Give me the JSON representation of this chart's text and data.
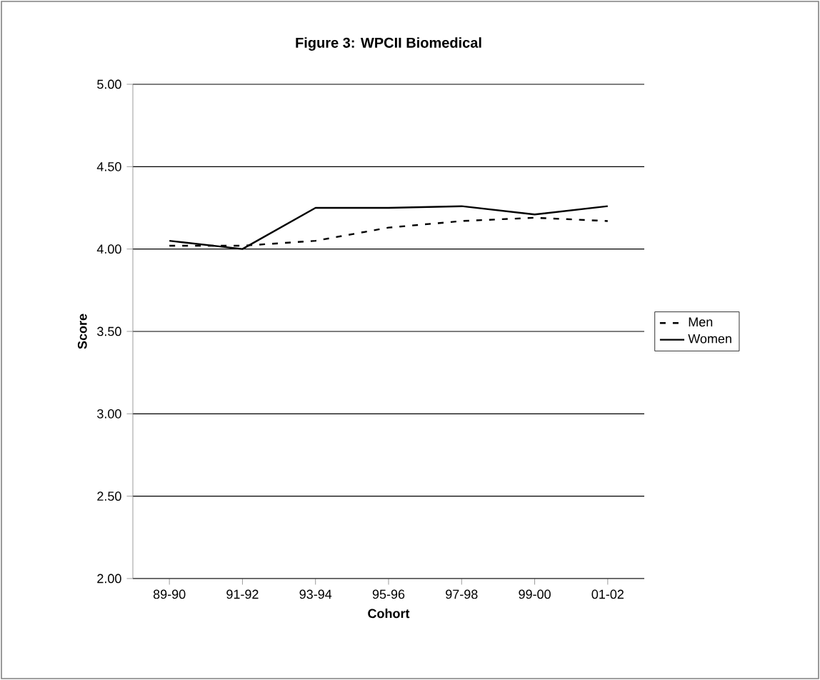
{
  "chart_data": {
    "type": "line",
    "title": "Figure 3:  WPCII Biomedical",
    "xlabel": "Cohort",
    "ylabel": "Score",
    "categories": [
      "89-90",
      "91-92",
      "93-94",
      "95-96",
      "97-98",
      "99-00",
      "01-02"
    ],
    "series": [
      {
        "name": "Men",
        "color": "#000000",
        "line_style": "dashed",
        "values": [
          4.02,
          4.02,
          4.05,
          4.13,
          4.17,
          4.19,
          4.17
        ]
      },
      {
        "name": "Women",
        "color": "#000000",
        "line_style": "solid",
        "values": [
          4.05,
          4.0,
          4.25,
          4.25,
          4.26,
          4.21,
          4.26
        ]
      }
    ],
    "ylim": [
      2.0,
      5.0
    ],
    "yticks": [
      {
        "value": 2,
        "label": "2.00"
      },
      {
        "value": 2.5,
        "label": "2.50"
      },
      {
        "value": 3,
        "label": "3.00"
      },
      {
        "value": 3.5,
        "label": "3.50"
      },
      {
        "value": 4,
        "label": "4.00"
      },
      {
        "value": 4.5,
        "label": "4.50"
      },
      {
        "value": 5,
        "label": "5.00"
      }
    ],
    "grid": "y",
    "legend": "right",
    "marker": "none"
  }
}
